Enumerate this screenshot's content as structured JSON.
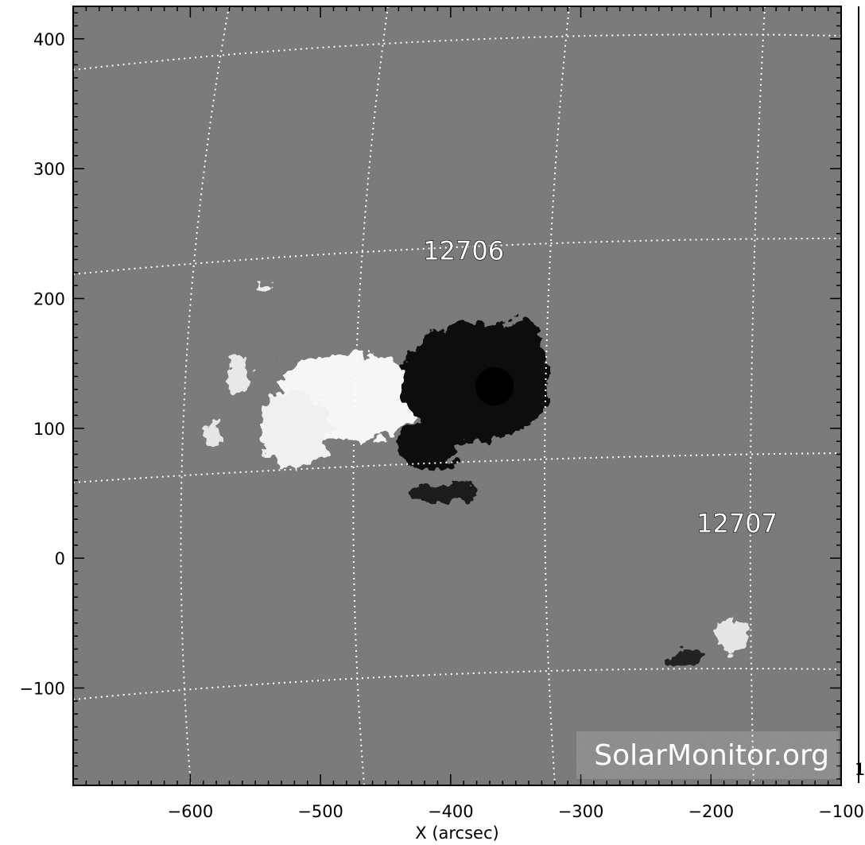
{
  "image": {
    "kind": "solar magnetogram (grayscale)",
    "polarity_colors": {
      "positive": "#ffffff",
      "negative": "#000000",
      "background": "#808080"
    }
  },
  "axes": {
    "xlabel": "X (arcsec)",
    "xticks": [
      -600,
      -500,
      -400,
      -300,
      -200,
      -100
    ],
    "yticks": [
      400,
      300,
      200,
      100,
      0,
      -100
    ],
    "xlim": [
      -690,
      -100
    ],
    "ylim": [
      -175,
      425
    ]
  },
  "regions": [
    {
      "id": "12706",
      "x": -390,
      "y": 230
    },
    {
      "id": "12707",
      "x": -180,
      "y": 20
    }
  ],
  "watermark": "SolarMonitor.org",
  "edge_mark": "1"
}
